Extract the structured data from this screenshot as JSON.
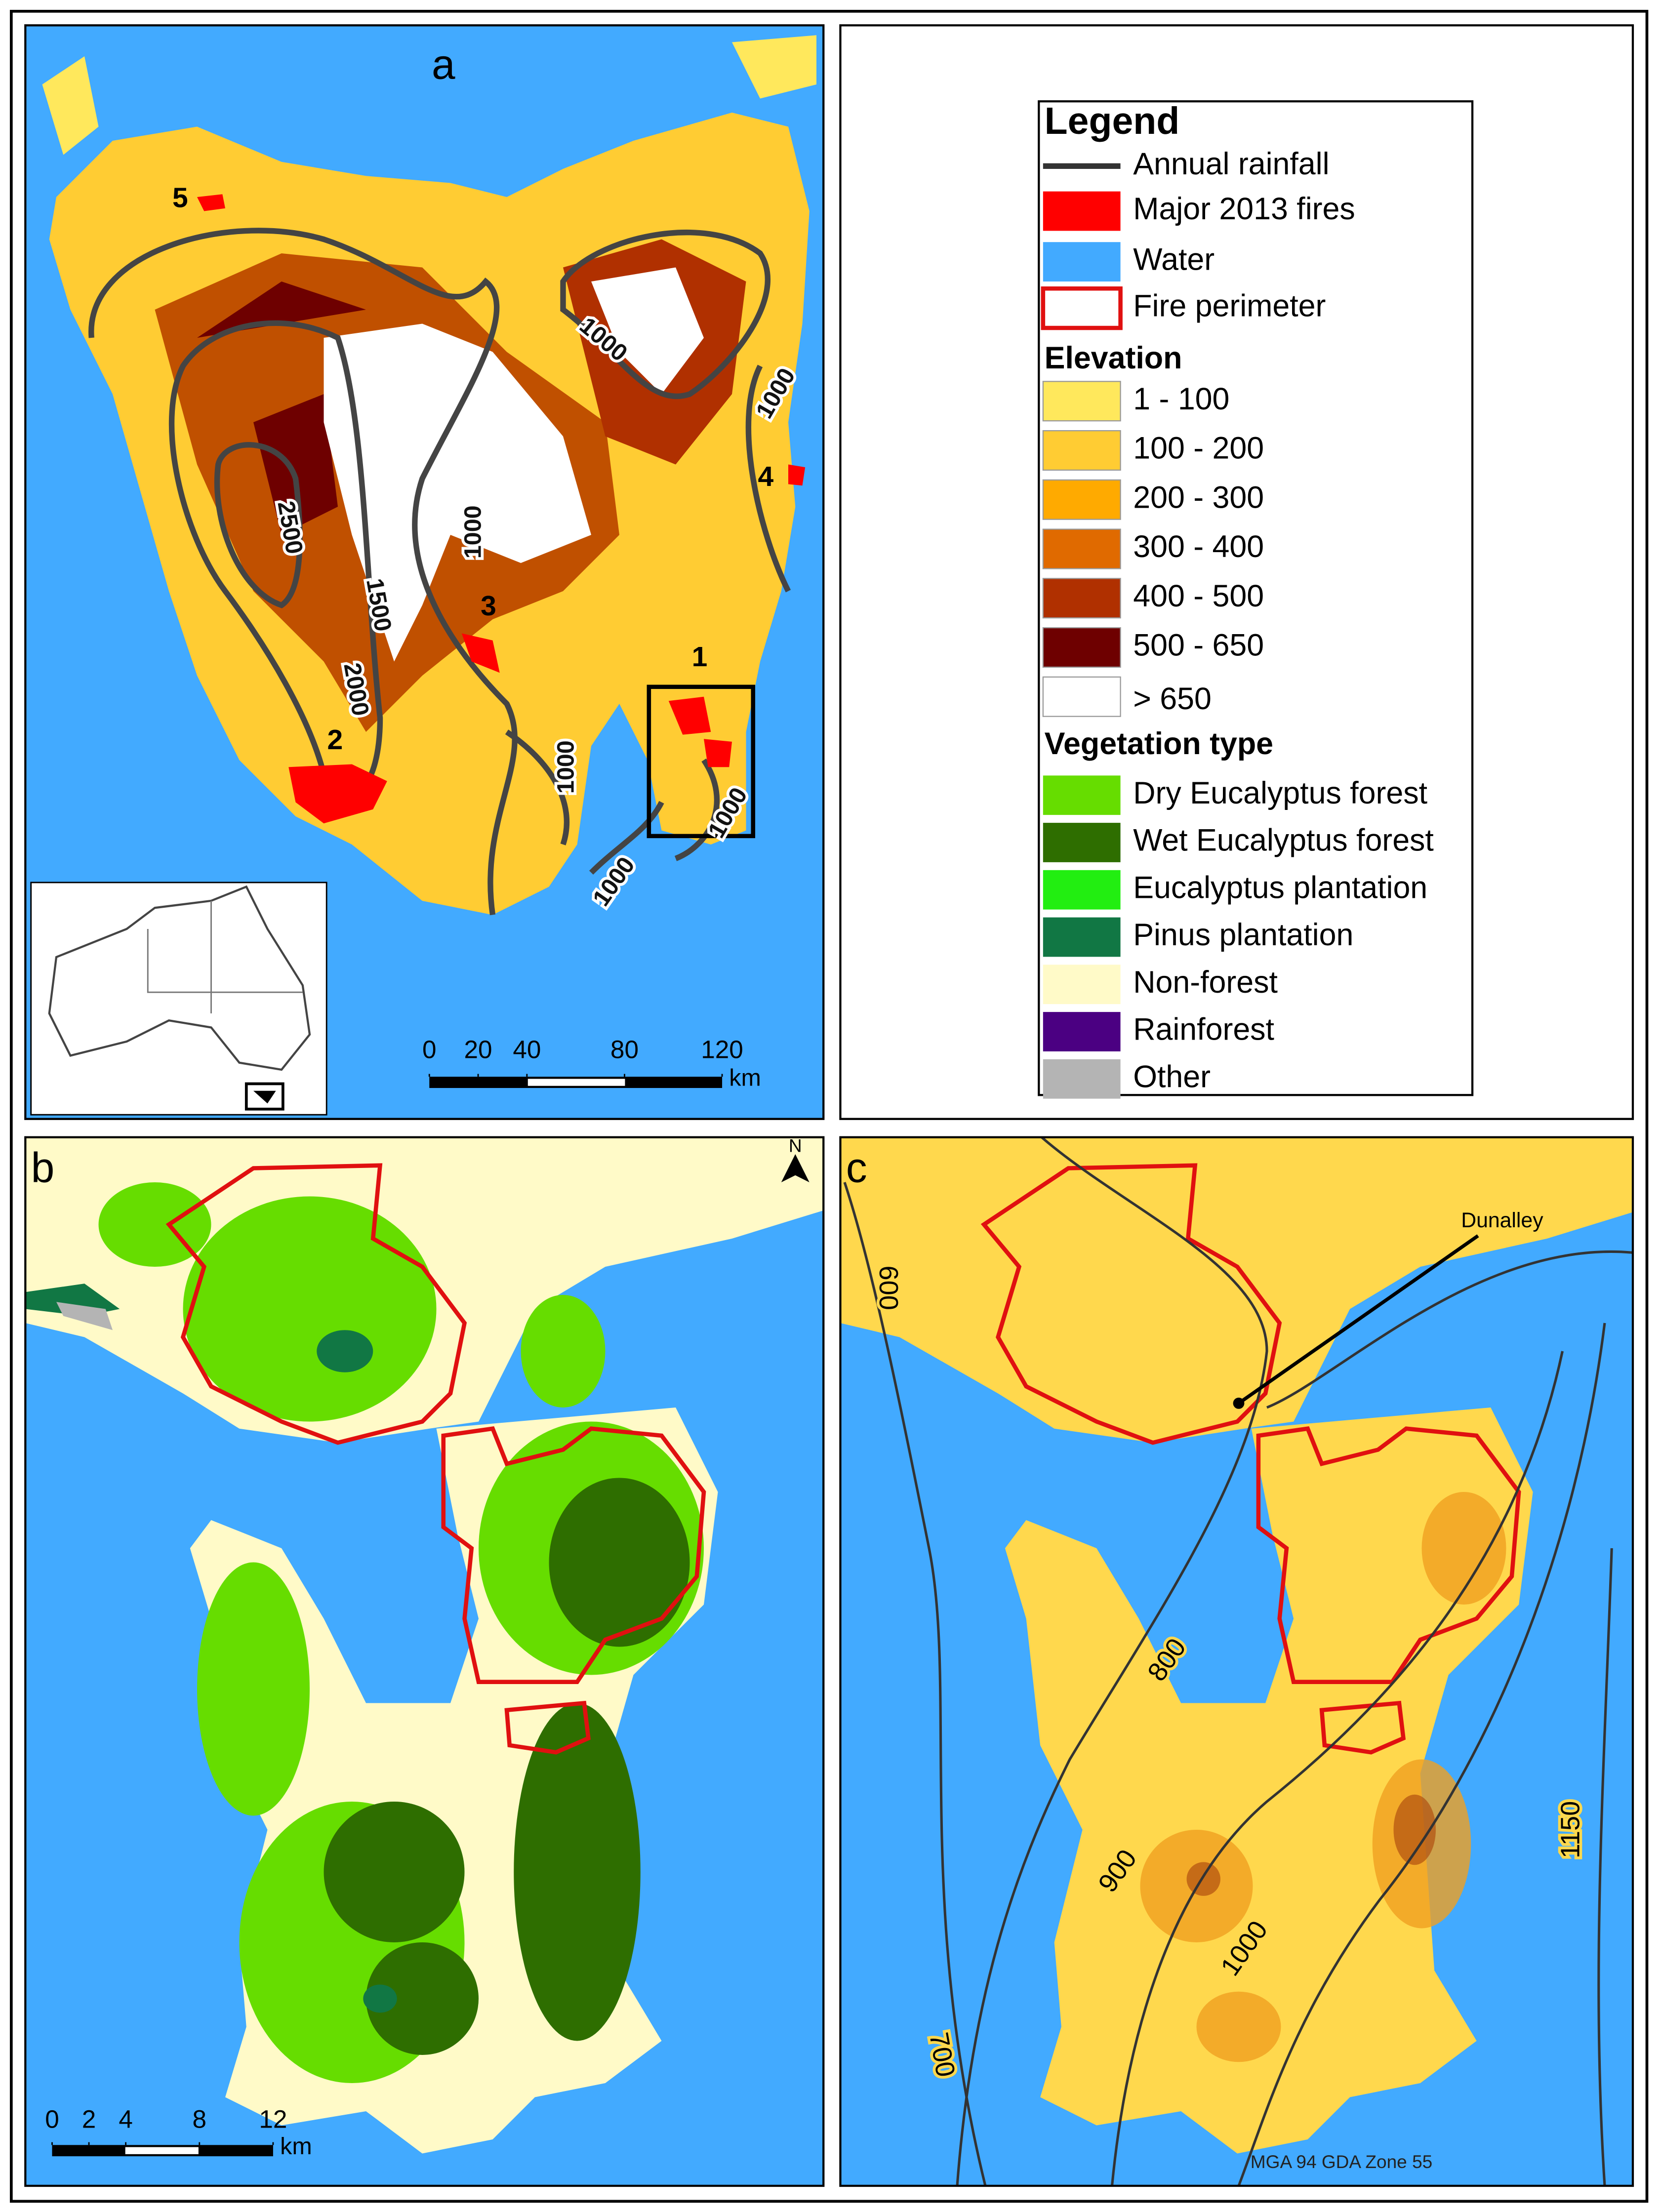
{
  "panel_a": {
    "label": "a",
    "fire_labels": [
      "5",
      "4",
      "3",
      "1",
      "2"
    ],
    "contour_labels": [
      "1000",
      "1000",
      "2500",
      "1500",
      "2000",
      "1000",
      "1000",
      "1000",
      "1000"
    ],
    "scale_bar": {
      "ticks": [
        0,
        20,
        40,
        80,
        120
      ],
      "unit": "km"
    }
  },
  "legend": {
    "title": "Legend",
    "symbols": [
      {
        "label": "Annual rainfall",
        "color": "#333333",
        "symbol": "line"
      },
      {
        "label": "Major 2013 fires",
        "color": "#ff0000",
        "symbol": "fill"
      },
      {
        "label": "Water",
        "color": "#42aaff",
        "symbol": "fill"
      },
      {
        "label": "Fire perimeter",
        "color": "#e01010",
        "symbol": "outline"
      }
    ],
    "elevation": {
      "title": "Elevation",
      "items": [
        {
          "label": "1 - 100",
          "color": "#ffe85c"
        },
        {
          "label": "100 - 200",
          "color": "#ffcc33"
        },
        {
          "label": "200 - 300",
          "color": "#ffaa00"
        },
        {
          "label": "300 - 400",
          "color": "#e06a00"
        },
        {
          "label": "400 - 500",
          "color": "#b03000"
        },
        {
          "label": "500 - 650",
          "color": "#6e0000"
        },
        {
          "label": "> 650",
          "color": "#ffffff"
        }
      ]
    },
    "vegetation": {
      "title": "Vegetation type",
      "items": [
        {
          "label": "Dry Eucalyptus forest",
          "color": "#66dd00"
        },
        {
          "label": "Wet Eucalyptus forest",
          "color": "#2e6e00"
        },
        {
          "label": "Eucalyptus plantation",
          "color": "#22ee11"
        },
        {
          "label": "Pinus plantation",
          "color": "#117744"
        },
        {
          "label": "Non-forest",
          "color": "#fffac8"
        },
        {
          "label": "Rainforest",
          "color": "#4b0082"
        },
        {
          "label": "Other",
          "color": "#b4b4b4"
        }
      ]
    }
  },
  "panel_b": {
    "label": "b",
    "north": "N",
    "scale_bar": {
      "ticks": [
        0,
        2,
        4,
        8,
        12
      ],
      "unit": "km"
    }
  },
  "panel_c": {
    "label": "c",
    "town": "Dunalley",
    "contour_labels": [
      "600",
      "800",
      "900",
      "1000",
      "700",
      "1150"
    ],
    "projection": "MGA 94 GDA Zone 55"
  }
}
